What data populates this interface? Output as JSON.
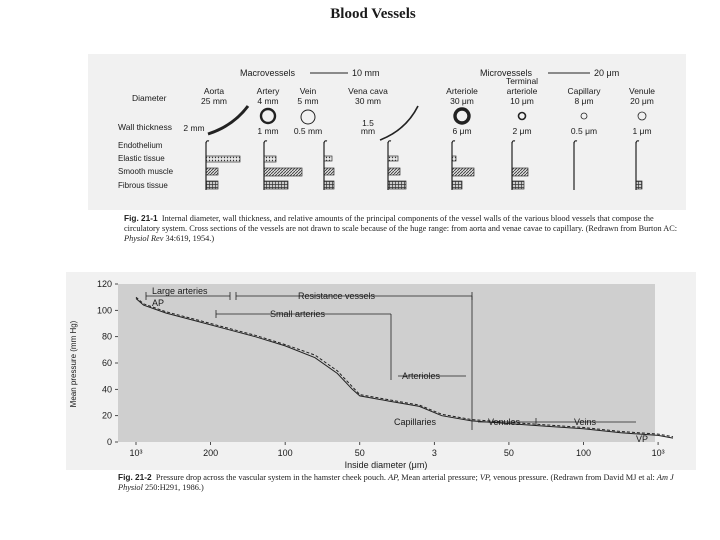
{
  "page": {
    "title": "Blood Vessels"
  },
  "fig1": {
    "macro_label": "Macrovessels",
    "macro_scale": "10 mm",
    "micro_label": "Microvessels",
    "micro_scale": "20 μm",
    "row_labels": {
      "diameter": "Diameter",
      "wall": "Wall thickness",
      "endothelium": "Endothelium",
      "elastic": "Elastic tissue",
      "smooth": "Smooth muscle",
      "fibrous": "Fibrous tissue"
    },
    "vessels": [
      {
        "name": "Aorta",
        "diameter": "25 mm",
        "wall": "2 mm"
      },
      {
        "name": "Artery",
        "diameter": "4 mm",
        "wall": "1 mm"
      },
      {
        "name": "Vein",
        "diameter": "5 mm",
        "wall": "0.5 mm"
      },
      {
        "name": "Vena cava",
        "diameter": "30 mm",
        "wall_value": "1.5",
        "wall_unit": "mm"
      },
      {
        "name": "Arteriole",
        "diameter": "30 μm",
        "wall": "6 μm"
      },
      {
        "name_line1": "Terminal",
        "name_line2": "arteriole",
        "diameter": "10 μm",
        "wall": "2 μm"
      },
      {
        "name": "Capillary",
        "diameter": "8 μm",
        "wall": "0.5 μm"
      },
      {
        "name": "Venule",
        "diameter": "20 μm",
        "wall": "1 μm"
      }
    ],
    "caption": {
      "label": "Fig. 21-1",
      "text_a": "Internal diameter, wall thickness, and relative amounts of the principal components of the vessel walls of the various blood vessels that compose the circulatory system. Cross sections of the vessels are not drawn to scale because of the huge range: from aorta and venae cavae to capillary. (Redrawn from Burton AC:",
      "journal": "Physiol Rev",
      "text_b": "34:619, 1954.)"
    }
  },
  "fig2": {
    "ylabel": "Mean pressure (mm Hg)",
    "xlabel": "Inside diameter (μm)",
    "yticks": [
      "120",
      "100",
      "80",
      "60",
      "40",
      "20",
      "0"
    ],
    "xticks": [
      "10³",
      "200",
      "100",
      "50",
      "3",
      "50",
      "100",
      "10³"
    ],
    "annotations": {
      "large_arteries": "Large arteries",
      "resistance": "Resistance vessels",
      "small_arteries": "Small arteries",
      "arterioles": "Arterioles",
      "capillaries": "Capillaries",
      "venules": "Venules",
      "veins": "Veins",
      "ap": "AP",
      "vp": "VP"
    },
    "caption": {
      "label": "Fig. 21-2",
      "text_a": "Pressure drop across the vascular system in the hamster cheek pouch.",
      "ap": "AP,",
      "text_b": "Mean arterial pressure;",
      "vp": "VP,",
      "text_c": "venous pressure. (Redrawn from David MJ et al:",
      "journal": "Am J Physiol",
      "text_d": "250:H291, 1986.)"
    }
  },
  "chart_data": {
    "type": "line",
    "ylabel": "Mean pressure (mm Hg)",
    "xlabel": "Inside diameter (μm)",
    "x_tick_labels": [
      "10³",
      "200",
      "100",
      "50",
      "3",
      "50",
      "100",
      "10³"
    ],
    "ylim": [
      0,
      120
    ],
    "grid": false,
    "series": [
      {
        "points": [
          [
            0.0,
            109
          ],
          [
            0.1,
            104
          ],
          [
            0.4,
            98
          ],
          [
            0.8,
            92
          ],
          [
            1.2,
            86
          ],
          [
            1.6,
            80
          ],
          [
            2.0,
            73
          ],
          [
            2.4,
            64
          ],
          [
            2.7,
            52
          ],
          [
            2.9,
            40
          ],
          [
            3.0,
            35
          ],
          [
            3.4,
            31
          ],
          [
            3.8,
            27
          ],
          [
            4.1,
            20
          ],
          [
            4.5,
            16
          ],
          [
            5.0,
            14
          ],
          [
            5.5,
            12
          ],
          [
            6.0,
            10
          ],
          [
            6.5,
            7
          ],
          [
            7.0,
            5
          ],
          [
            7.2,
            3
          ]
        ]
      },
      {
        "points": [
          [
            0.0,
            110
          ],
          [
            0.1,
            105
          ],
          [
            0.4,
            99
          ],
          [
            0.8,
            93
          ],
          [
            1.2,
            87
          ],
          [
            1.6,
            81
          ],
          [
            2.0,
            74
          ],
          [
            2.4,
            66
          ],
          [
            2.7,
            54
          ],
          [
            2.9,
            42
          ],
          [
            3.0,
            36
          ],
          [
            3.4,
            32
          ],
          [
            3.8,
            28
          ],
          [
            4.1,
            21
          ],
          [
            4.5,
            17
          ],
          [
            5.0,
            15
          ],
          [
            5.5,
            13
          ],
          [
            6.0,
            11
          ],
          [
            6.5,
            8
          ],
          [
            7.0,
            6
          ],
          [
            7.2,
            4
          ]
        ]
      }
    ]
  }
}
